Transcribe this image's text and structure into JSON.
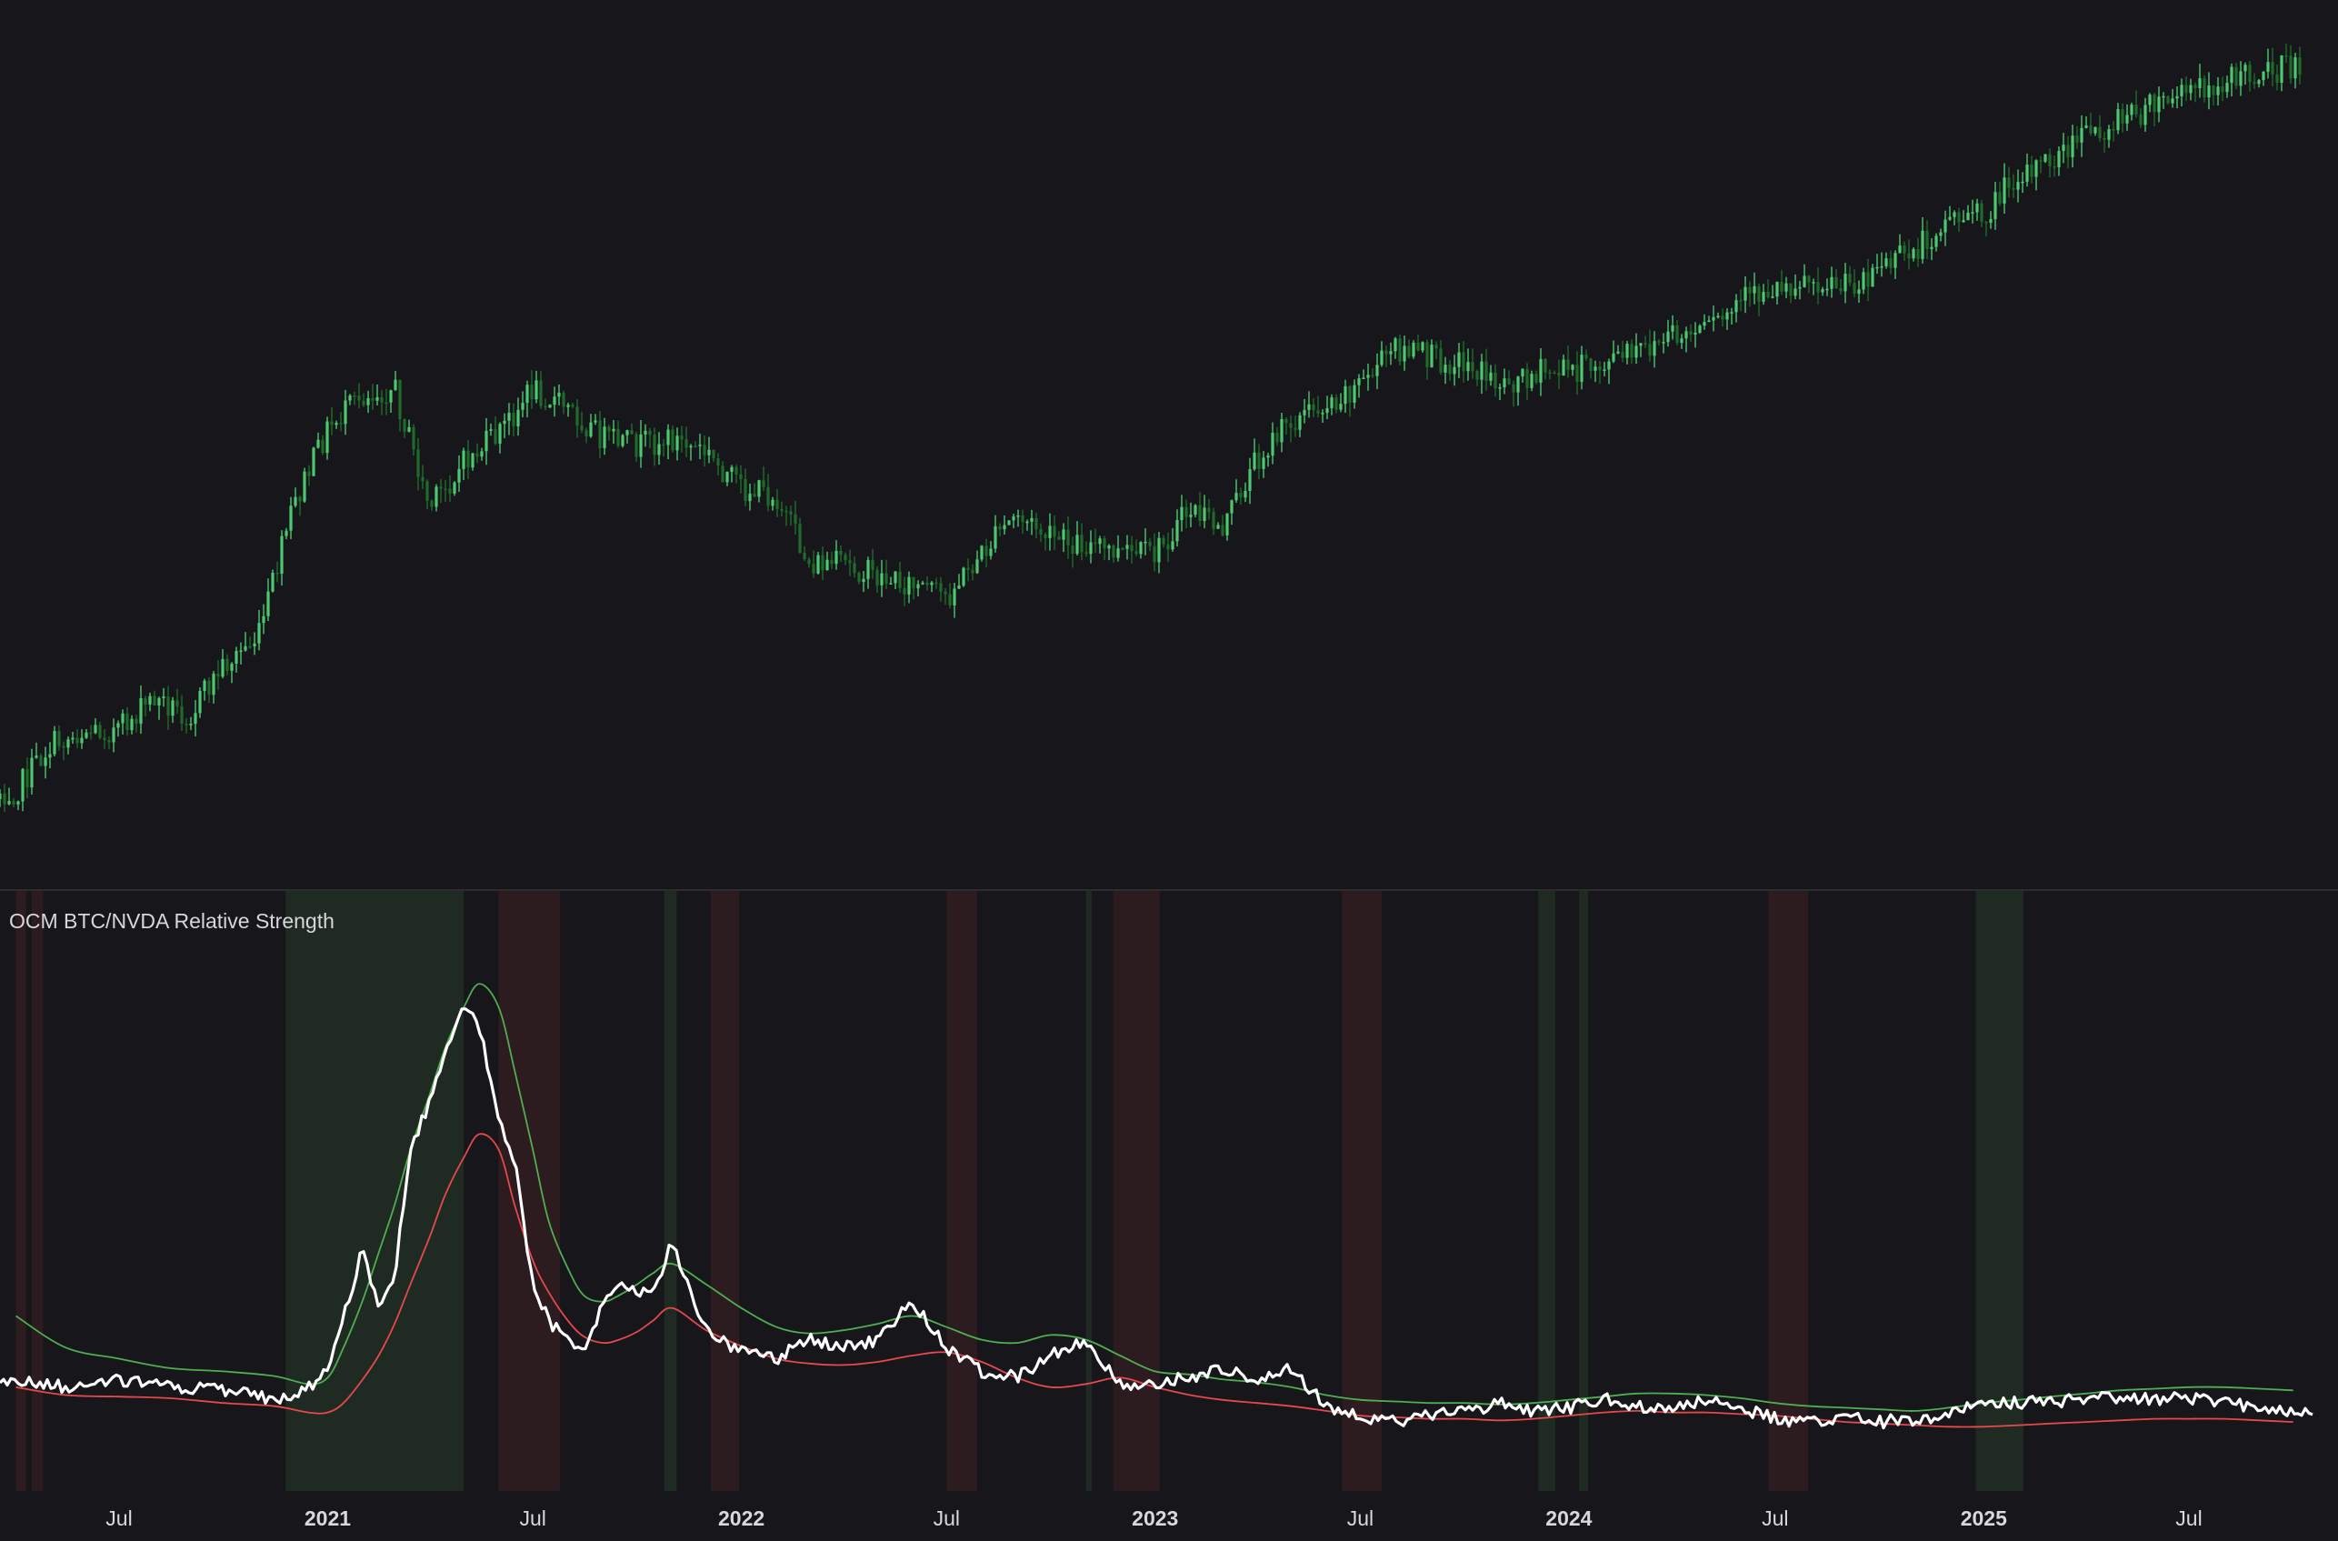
{
  "indicator": {
    "title": "OCM BTC/NVDA Relative Strength"
  },
  "x_axis": {
    "labels": [
      {
        "text": "Jul",
        "date": "2020-07-01",
        "bold": false
      },
      {
        "text": "2021",
        "date": "2021-01-01",
        "bold": true
      },
      {
        "text": "Jul",
        "date": "2021-07-01",
        "bold": false
      },
      {
        "text": "2022",
        "date": "2022-01-01",
        "bold": true
      },
      {
        "text": "Jul",
        "date": "2022-07-01",
        "bold": false
      },
      {
        "text": "2023",
        "date": "2023-01-01",
        "bold": true
      },
      {
        "text": "Jul",
        "date": "2023-07-01",
        "bold": false
      },
      {
        "text": "2024",
        "date": "2024-01-01",
        "bold": true
      },
      {
        "text": "Jul",
        "date": "2024-07-01",
        "bold": false
      },
      {
        "text": "2025",
        "date": "2025-01-01",
        "bold": true
      },
      {
        "text": "Jul",
        "date": "2025-07-01",
        "bold": false
      }
    ]
  },
  "colors": {
    "background": "#17171b",
    "price_candles": "#4cc870",
    "price_candles_dark": "#1f6b2c",
    "ratio_line": "#ffffff",
    "upper_band": "#4fae4f",
    "lower_band": "#e5484d",
    "bullish_zone": "#1f2a22",
    "bearish_zone": "#2c1b1f"
  },
  "chart_data": [
    {
      "type": "line",
      "panel": "price",
      "series": [
        {
          "style": "candles",
          "x": [
            "2020-04-01",
            "2020-05-01",
            "2020-06-01",
            "2020-07-01",
            "2020-08-01",
            "2020-09-01",
            "2020-10-01",
            "2020-11-01",
            "2020-12-01",
            "2021-01-01",
            "2021-02-01",
            "2021-03-01",
            "2021-04-01",
            "2021-05-01",
            "2021-06-01",
            "2021-07-01",
            "2021-08-01",
            "2021-09-01",
            "2021-10-01",
            "2021-11-01",
            "2021-12-01",
            "2022-01-01",
            "2022-02-01",
            "2022-03-01",
            "2022-04-01",
            "2022-05-01",
            "2022-06-01",
            "2022-07-01",
            "2022-08-01",
            "2022-09-01",
            "2022-10-01",
            "2022-11-01",
            "2022-12-01",
            "2023-01-01",
            "2023-02-01",
            "2023-03-01",
            "2023-04-01",
            "2023-05-01",
            "2023-06-01",
            "2023-07-01",
            "2023-08-01",
            "2023-09-01",
            "2023-10-01",
            "2023-11-01",
            "2023-12-01",
            "2024-01-01",
            "2024-02-01",
            "2024-03-01",
            "2024-04-01",
            "2024-05-01",
            "2024-06-01",
            "2024-07-01",
            "2024-08-01",
            "2024-09-01",
            "2024-10-01",
            "2024-11-01",
            "2024-12-01",
            "2025-01-01",
            "2025-02-01",
            "2025-03-01",
            "2025-04-01",
            "2025-05-01",
            "2025-06-01",
            "2025-07-01",
            "2025-08-01",
            "2025-09-01",
            "2025-10-01"
          ],
          "values": [
            0.18,
            0.36,
            0.42,
            0.42,
            0.55,
            0.48,
            0.68,
            0.79,
            1.3,
            1.62,
            1.75,
            1.78,
            1.3,
            1.48,
            1.6,
            1.78,
            1.7,
            1.58,
            1.55,
            1.58,
            1.52,
            1.38,
            1.35,
            1.08,
            1.08,
            1.03,
            1.0,
            0.95,
            1.12,
            1.28,
            1.18,
            1.16,
            1.12,
            1.12,
            1.3,
            1.22,
            1.5,
            1.65,
            1.72,
            1.8,
            1.94,
            1.9,
            1.88,
            1.8,
            1.84,
            1.85,
            1.88,
            1.92,
            1.98,
            2.0,
            2.12,
            2.18,
            2.22,
            2.18,
            2.26,
            2.32,
            2.46,
            2.46,
            2.64,
            2.68,
            2.78,
            2.84,
            2.9,
            2.96,
            3.0,
            3.04,
            3.05
          ]
        }
      ]
    },
    {
      "type": "line",
      "panel": "indicator",
      "title": "OCM BTC/NVDA Relative Strength",
      "x": [
        "2020-04-01",
        "2020-05-15",
        "2020-07-01",
        "2020-08-15",
        "2020-10-01",
        "2020-11-15",
        "2020-12-15",
        "2021-01-01",
        "2021-01-15",
        "2021-02-01",
        "2021-02-15",
        "2021-03-01",
        "2021-03-15",
        "2021-04-01",
        "2021-04-15",
        "2021-05-01",
        "2021-05-15",
        "2021-06-01",
        "2021-06-15",
        "2021-07-01",
        "2021-07-15",
        "2021-08-01",
        "2021-08-15",
        "2021-09-01",
        "2021-09-15",
        "2021-10-01",
        "2021-10-15",
        "2021-11-01",
        "2021-12-01",
        "2022-01-01",
        "2022-02-01",
        "2022-03-01",
        "2022-04-01",
        "2022-05-01",
        "2022-06-01",
        "2022-07-01",
        "2022-08-01",
        "2022-09-01",
        "2022-10-01",
        "2022-11-01",
        "2022-12-01",
        "2023-01-01",
        "2023-02-01",
        "2023-03-01",
        "2023-04-01",
        "2023-05-01",
        "2023-06-01",
        "2023-07-01",
        "2023-08-01",
        "2023-09-01",
        "2023-10-01",
        "2023-11-01",
        "2023-12-01",
        "2024-01-01",
        "2024-02-01",
        "2024-03-01",
        "2024-04-01",
        "2024-05-01",
        "2024-06-01",
        "2024-07-01",
        "2024-08-01",
        "2024-09-01",
        "2024-10-01",
        "2024-11-01",
        "2024-12-01",
        "2025-01-01",
        "2025-02-01",
        "2025-03-01",
        "2025-04-01",
        "2025-05-01",
        "2025-06-01",
        "2025-07-01",
        "2025-08-01",
        "2025-09-01",
        "2025-10-01"
      ],
      "series": [
        {
          "role": "ratio",
          "values": [
            0.34,
            0.3,
            0.34,
            0.3,
            0.28,
            0.22,
            0.3,
            0.42,
            0.75,
            1.17,
            0.8,
            1.0,
            1.8,
            2.1,
            2.4,
            2.72,
            2.58,
            2.0,
            1.72,
            0.95,
            0.72,
            0.6,
            0.55,
            0.82,
            0.95,
            0.9,
            0.88,
            1.22,
            0.65,
            0.53,
            0.48,
            0.6,
            0.55,
            0.6,
            0.85,
            0.55,
            0.4,
            0.36,
            0.5,
            0.6,
            0.31,
            0.33,
            0.36,
            0.42,
            0.36,
            0.41,
            0.18,
            0.11,
            0.08,
            0.12,
            0.14,
            0.2,
            0.14,
            0.17,
            0.23,
            0.18,
            0.16,
            0.22,
            0.17,
            0.1,
            0.07,
            0.12,
            0.08,
            0.1,
            0.13,
            0.2,
            0.2,
            0.21,
            0.22,
            0.24,
            0.22,
            0.23,
            0.2,
            0.18,
            0.15
          ]
        },
        {
          "role": "upper_band",
          "values": [
            0.75,
            0.55,
            0.48,
            0.42,
            0.4,
            0.37,
            0.32,
            0.36,
            0.55,
            0.85,
            1.15,
            1.45,
            1.8,
            2.15,
            2.45,
            2.7,
            2.85,
            2.7,
            2.3,
            1.8,
            1.35,
            1.05,
            0.88,
            0.84,
            0.88,
            0.95,
            1.02,
            1.08,
            0.95,
            0.8,
            0.68,
            0.64,
            0.66,
            0.7,
            0.75,
            0.68,
            0.6,
            0.58,
            0.63,
            0.6,
            0.5,
            0.4,
            0.38,
            0.35,
            0.33,
            0.3,
            0.25,
            0.22,
            0.21,
            0.2,
            0.2,
            0.19,
            0.2,
            0.22,
            0.24,
            0.26,
            0.26,
            0.25,
            0.23,
            0.2,
            0.18,
            0.17,
            0.16,
            0.15,
            0.17,
            0.2,
            0.22,
            0.24,
            0.26,
            0.28,
            0.29,
            0.3,
            0.3,
            0.29,
            0.28
          ]
        },
        {
          "role": "lower_band",
          "values": [
            0.3,
            0.25,
            0.24,
            0.23,
            0.2,
            0.18,
            0.14,
            0.14,
            0.2,
            0.35,
            0.5,
            0.7,
            0.95,
            1.25,
            1.52,
            1.75,
            1.9,
            1.8,
            1.45,
            1.1,
            0.9,
            0.72,
            0.62,
            0.58,
            0.6,
            0.65,
            0.72,
            0.8,
            0.66,
            0.56,
            0.48,
            0.45,
            0.44,
            0.46,
            0.5,
            0.52,
            0.46,
            0.36,
            0.3,
            0.32,
            0.36,
            0.3,
            0.25,
            0.22,
            0.2,
            0.18,
            0.15,
            0.12,
            0.11,
            0.1,
            0.1,
            0.09,
            0.1,
            0.12,
            0.14,
            0.15,
            0.14,
            0.14,
            0.13,
            0.12,
            0.1,
            0.08,
            0.07,
            0.06,
            0.05,
            0.05,
            0.06,
            0.07,
            0.08,
            0.09,
            0.1,
            0.1,
            0.1,
            0.09,
            0.08
          ]
        }
      ],
      "zones": [
        {
          "kind": "bearish",
          "start": "2020-04-01",
          "end": "2020-04-10"
        },
        {
          "kind": "bearish",
          "start": "2020-04-15",
          "end": "2020-04-25"
        },
        {
          "kind": "bullish",
          "start": "2020-11-25",
          "end": "2021-05-01"
        },
        {
          "kind": "bearish",
          "start": "2021-06-01",
          "end": "2021-07-25"
        },
        {
          "kind": "bullish",
          "start": "2021-10-25",
          "end": "2021-11-05"
        },
        {
          "kind": "bearish",
          "start": "2021-12-05",
          "end": "2021-12-30"
        },
        {
          "kind": "bearish",
          "start": "2022-07-01",
          "end": "2022-07-28"
        },
        {
          "kind": "bullish",
          "start": "2022-11-01",
          "end": "2022-11-06"
        },
        {
          "kind": "bearish",
          "start": "2022-11-25",
          "end": "2023-01-05"
        },
        {
          "kind": "bearish",
          "start": "2023-06-15",
          "end": "2023-07-20"
        },
        {
          "kind": "bullish",
          "start": "2023-12-05",
          "end": "2023-12-20"
        },
        {
          "kind": "bullish",
          "start": "2024-01-10",
          "end": "2024-01-18"
        },
        {
          "kind": "bearish",
          "start": "2024-06-25",
          "end": "2024-07-30"
        },
        {
          "kind": "bullish",
          "start": "2024-12-25",
          "end": "2025-02-05"
        }
      ]
    }
  ]
}
